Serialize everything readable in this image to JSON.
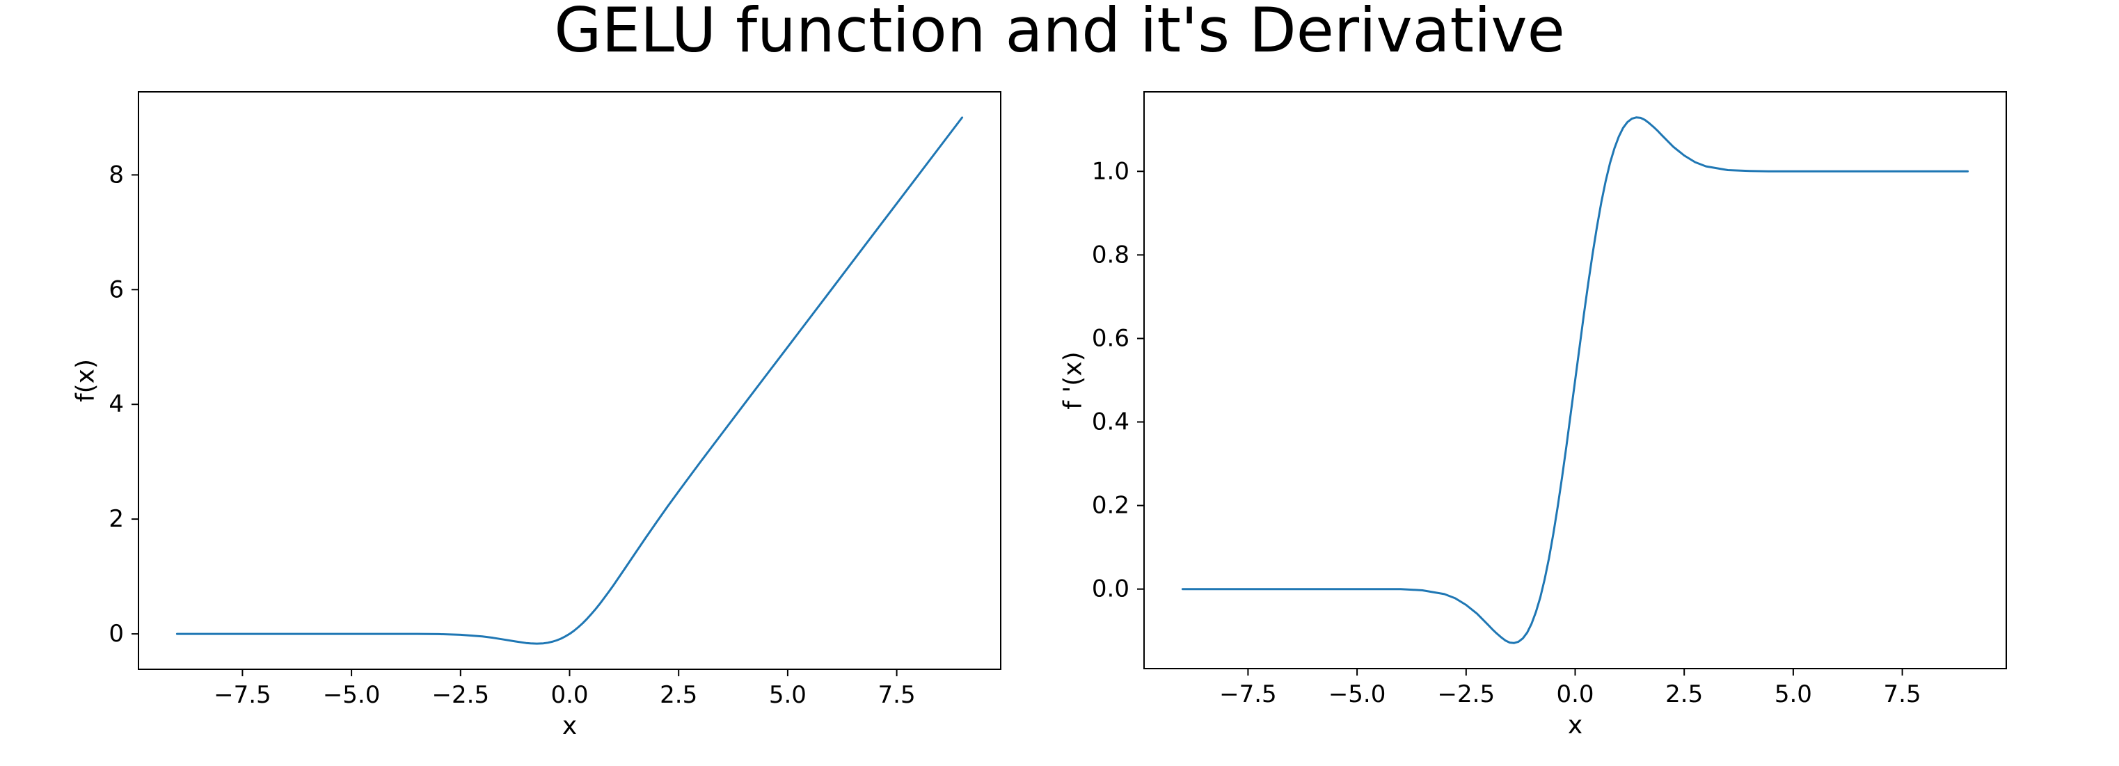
{
  "title": "GELU function and it's Derivative",
  "line_color": "#1f77b4",
  "chart_data": [
    {
      "type": "line",
      "title": "",
      "xlabel": "x",
      "ylabel": "f(x)",
      "grid": false,
      "legend": null,
      "xlim": [
        -9.9,
        9.9
      ],
      "ylim": [
        -0.63,
        9.46
      ],
      "xticks": [
        -7.5,
        -5.0,
        -2.5,
        0.0,
        2.5,
        5.0,
        7.5
      ],
      "xtick_labels": [
        "−7.5",
        "−5.0",
        "−2.5",
        "0.0",
        "2.5",
        "5.0",
        "7.5"
      ],
      "yticks": [
        0,
        2,
        4,
        6,
        8
      ],
      "ytick_labels": [
        "0",
        "2",
        "4",
        "6",
        "8"
      ],
      "series": [
        {
          "name": "f(x)",
          "color": "#1f77b4",
          "x": [
            -9,
            -8,
            -7,
            -6,
            -5,
            -4,
            -3.5,
            -3,
            -2.5,
            -2,
            -1.75,
            -1.5,
            -1.25,
            -1,
            -0.9,
            -0.8,
            -0.75,
            -0.7,
            -0.6,
            -0.5,
            -0.4,
            -0.3,
            -0.2,
            -0.1,
            0,
            0.1,
            0.2,
            0.3,
            0.4,
            0.5,
            0.6,
            0.7,
            0.8,
            0.9,
            1,
            1.25,
            1.5,
            1.75,
            2,
            2.25,
            2.5,
            2.75,
            3,
            3.5,
            4,
            4.5,
            5,
            6,
            7,
            8,
            9
          ],
          "y": [
            0,
            0,
            0,
            0,
            0,
            0,
            -0.001,
            -0.004,
            -0.016,
            -0.046,
            -0.07,
            -0.1,
            -0.132,
            -0.159,
            -0.166,
            -0.169,
            -0.17,
            -0.169,
            -0.165,
            -0.154,
            -0.138,
            -0.115,
            -0.084,
            -0.046,
            0,
            0.054,
            0.116,
            0.185,
            0.262,
            0.346,
            0.435,
            0.531,
            0.631,
            0.734,
            0.841,
            1.118,
            1.4,
            1.68,
            1.954,
            2.222,
            2.484,
            2.742,
            2.996,
            3.499,
            4,
            4.5,
            5,
            6,
            7,
            8,
            9
          ]
        }
      ]
    },
    {
      "type": "line",
      "title": "",
      "xlabel": "x",
      "ylabel": "f '(x)",
      "grid": false,
      "legend": null,
      "xlim": [
        -9.9,
        9.9
      ],
      "ylim": [
        -0.192,
        1.192
      ],
      "xticks": [
        -7.5,
        -5.0,
        -2.5,
        0.0,
        2.5,
        5.0,
        7.5
      ],
      "xtick_labels": [
        "−7.5",
        "−5.0",
        "−2.5",
        "0.0",
        "2.5",
        "5.0",
        "7.5"
      ],
      "yticks": [
        0.0,
        0.2,
        0.4,
        0.6,
        0.8,
        1.0
      ],
      "ytick_labels": [
        "0.0",
        "0.2",
        "0.4",
        "0.6",
        "0.8",
        "1.0"
      ],
      "series": [
        {
          "name": "f '(x)",
          "color": "#1f77b4",
          "x": [
            -9,
            -8,
            -7,
            -6,
            -5,
            -4,
            -3.5,
            -3,
            -2.75,
            -2.5,
            -2.25,
            -2,
            -1.9,
            -1.8,
            -1.7,
            -1.6,
            -1.5,
            -1.4,
            -1.3,
            -1.2,
            -1.1,
            -1,
            -0.9,
            -0.8,
            -0.7,
            -0.6,
            -0.5,
            -0.4,
            -0.3,
            -0.2,
            -0.1,
            0,
            0.1,
            0.2,
            0.3,
            0.4,
            0.5,
            0.6,
            0.7,
            0.8,
            0.9,
            1,
            1.1,
            1.2,
            1.3,
            1.4,
            1.5,
            1.6,
            1.7,
            1.8,
            1.9,
            2,
            2.25,
            2.5,
            2.75,
            3,
            3.5,
            4,
            4.5,
            5,
            6,
            7,
            8,
            9
          ],
          "y": [
            0,
            0,
            0,
            0,
            0,
            0,
            -0.003,
            -0.012,
            -0.022,
            -0.038,
            -0.059,
            -0.085,
            -0.096,
            -0.106,
            -0.115,
            -0.123,
            -0.128,
            -0.129,
            -0.126,
            -0.118,
            -0.104,
            -0.083,
            -0.055,
            -0.02,
            0.023,
            0.074,
            0.133,
            0.197,
            0.268,
            0.343,
            0.421,
            0.5,
            0.579,
            0.657,
            0.732,
            0.803,
            0.867,
            0.926,
            0.977,
            1.02,
            1.055,
            1.083,
            1.104,
            1.118,
            1.126,
            1.129,
            1.128,
            1.123,
            1.115,
            1.106,
            1.096,
            1.085,
            1.059,
            1.038,
            1.022,
            1.012,
            1.003,
            1.001,
            1,
            1,
            1,
            1,
            1,
            1
          ]
        }
      ]
    }
  ]
}
